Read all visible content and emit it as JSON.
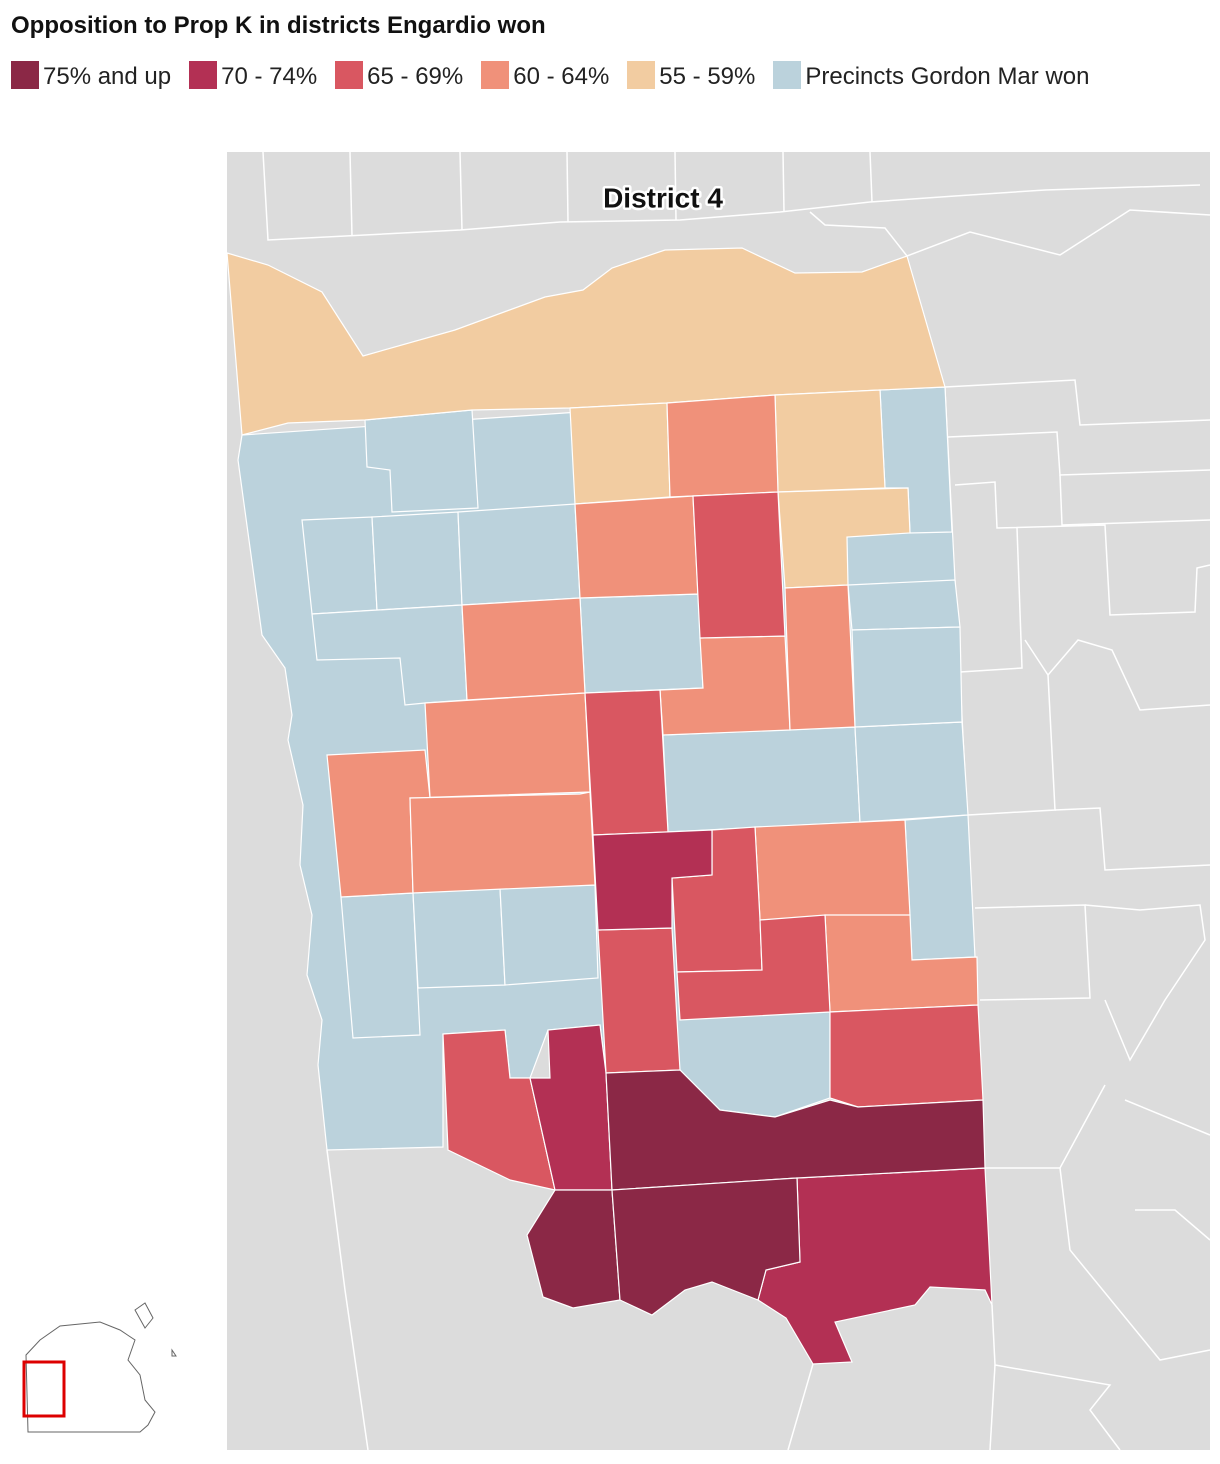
{
  "header": {
    "title": "Opposition to Prop K in districts Engardio won"
  },
  "legend": [
    {
      "label": "75% and up",
      "color": "#8b2846"
    },
    {
      "label": "70 - 74%",
      "color": "#b33054"
    },
    {
      "label": "65 - 69%",
      "color": "#d95761"
    },
    {
      "label": "60 - 64%",
      "color": "#f0917a"
    },
    {
      "label": "55 - 59%",
      "color": "#f2cca1"
    },
    {
      "label": "Precincts Gordon Mar won",
      "color": "#bbd2dc"
    }
  ],
  "map": {
    "district_label": "District 4"
  }
}
